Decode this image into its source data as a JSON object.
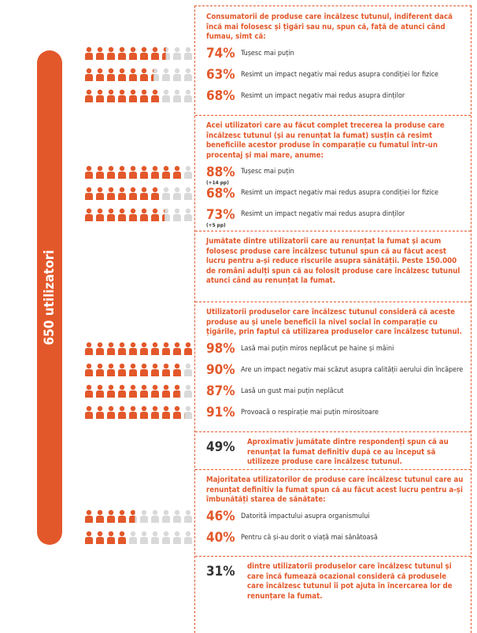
{
  "side_label": "650 utilizatori",
  "sections": [
    {
      "heading": "Consumatorii de produse care încălzesc tutunul, indiferent dacă încă mai folosesc și țigări sau nu, spun că, față de atunci când fumau, simt că:",
      "items": [
        {
          "percent": "74%",
          "label": "Tușesc mai puțin"
        },
        {
          "percent": "63%",
          "label": "Resimt un impact negativ mai redus asupra condiției lor fizice"
        },
        {
          "percent": "68%",
          "label": "Resimt un impact negativ mai redus asupra dinților"
        }
      ]
    },
    {
      "heading": "Acei utilizatori care au făcut complet trecerea la produse care încălzesc tutunul (și au renunțat la fumat) susțin că resimt beneficiile acestor produse în comparație cu fumatul într-un procentaj și mai mare, anume:",
      "items": [
        {
          "percent": "88%",
          "note": "(+14 pp)",
          "label": "Tușesc mai puțin"
        },
        {
          "percent": "68%",
          "label": "Resimt un impact negativ mai redus asupra condiției lor fizice"
        },
        {
          "percent": "73%",
          "note": "(+5 pp)",
          "label": "Resimt un impact negativ mai redus asupra dinților"
        }
      ]
    },
    {
      "heading": "Jumătate dintre utilizatorii care au renunțat la fumat și acum folosesc produse care încălzesc tutunul spun că au făcut acest lucru pentru a-și reduce riscurile asupra sănătății. Peste 150.000 de români adulți spun că au folosit produse care încălzesc tutunul atunci când au renunțat la fumat."
    },
    {
      "heading": "Utilizatorii produselor care încălzesc tutunul consideră că aceste produse au și unele beneficii la nivel social în comparație cu țigările, prin faptul că utilizarea produselor care încălzesc tutunul.",
      "items": [
        {
          "percent": "98%",
          "label": "Lasă mai puțin miros neplăcut pe haine și mâini"
        },
        {
          "percent": "90%",
          "label": "Are un impact negativ mai scăzut asupra calității aerului din încăpere"
        },
        {
          "percent": "87%",
          "label": "Lasă un gust mai puțin neplăcut"
        },
        {
          "percent": "91%",
          "label": "Provoacă o respirație mai puțin mirositoare"
        }
      ]
    },
    {
      "stat": {
        "percent": "49%",
        "text": "Aproximativ jumătate dintre respondenți spun că au renunțat la fumat definitiv după ce au început să utilizeze produse care încălzesc tutunul."
      }
    },
    {
      "heading": "Majoritatea utilizatorilor de produse care încălzesc tutunul care au renunțat definitiv la fumat spun că au făcut acest lucru pentru a-și îmbunătăți starea de sănătate:",
      "items": [
        {
          "percent": "46%",
          "label": "Datorită impactului asupra organismului"
        },
        {
          "percent": "40%",
          "label": "Pentru că și-au dorit o viață mai sănătoasă"
        }
      ]
    },
    {
      "stat": {
        "percent": "31%",
        "text": "dintre utilizatorii produselor care încălzesc tutunul și care încă fumează ocazional consideră că produsele care încălzesc tutunul îi pot ajuta în încercarea lor de renunțare la fumat."
      }
    }
  ]
}
